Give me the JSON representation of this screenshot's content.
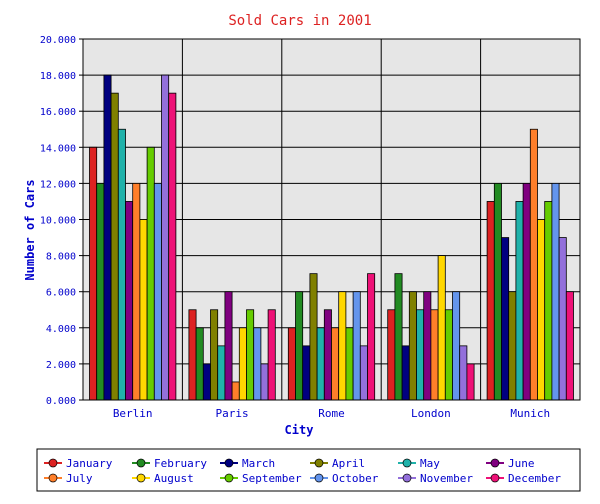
{
  "chart_data": {
    "type": "bar",
    "title": "Sold Cars in 2001",
    "xlabel": "City",
    "ylabel": "Number of Cars",
    "categories": [
      "Berlin",
      "Paris",
      "Rome",
      "London",
      "Munich"
    ],
    "ylim": [
      0,
      20
    ],
    "yticks": [
      "0.000",
      "2.000",
      "4.000",
      "6.000",
      "8.000",
      "10.000",
      "12.000",
      "14.000",
      "16.000",
      "18.000",
      "20.000"
    ],
    "grid": true,
    "legend_position": "bottom",
    "series": [
      {
        "name": "January",
        "color": "#dd2222",
        "values": [
          14,
          5,
          4,
          5,
          11
        ]
      },
      {
        "name": "February",
        "color": "#228b22",
        "values": [
          12,
          4,
          6,
          7,
          12
        ]
      },
      {
        "name": "March",
        "color": "#000080",
        "values": [
          18,
          2,
          3,
          3,
          9
        ]
      },
      {
        "name": "April",
        "color": "#808000",
        "values": [
          17,
          5,
          7,
          6,
          6
        ]
      },
      {
        "name": "May",
        "color": "#20b2aa",
        "values": [
          15,
          3,
          4,
          5,
          11
        ]
      },
      {
        "name": "June",
        "color": "#800080",
        "values": [
          11,
          6,
          5,
          6,
          12
        ]
      },
      {
        "name": "July",
        "color": "#ff7f2a",
        "values": [
          12,
          1,
          4,
          5,
          15
        ]
      },
      {
        "name": "August",
        "color": "#ffd700",
        "values": [
          10,
          4,
          6,
          8,
          10
        ]
      },
      {
        "name": "September",
        "color": "#66cc00",
        "values": [
          14,
          5,
          4,
          5,
          11
        ]
      },
      {
        "name": "October",
        "color": "#6495ed",
        "values": [
          12,
          4,
          6,
          6,
          12
        ]
      },
      {
        "name": "November",
        "color": "#9370db",
        "values": [
          18,
          2,
          3,
          3,
          9
        ]
      },
      {
        "name": "December",
        "color": "#ee1177",
        "values": [
          17,
          5,
          7,
          2,
          6
        ]
      }
    ]
  }
}
